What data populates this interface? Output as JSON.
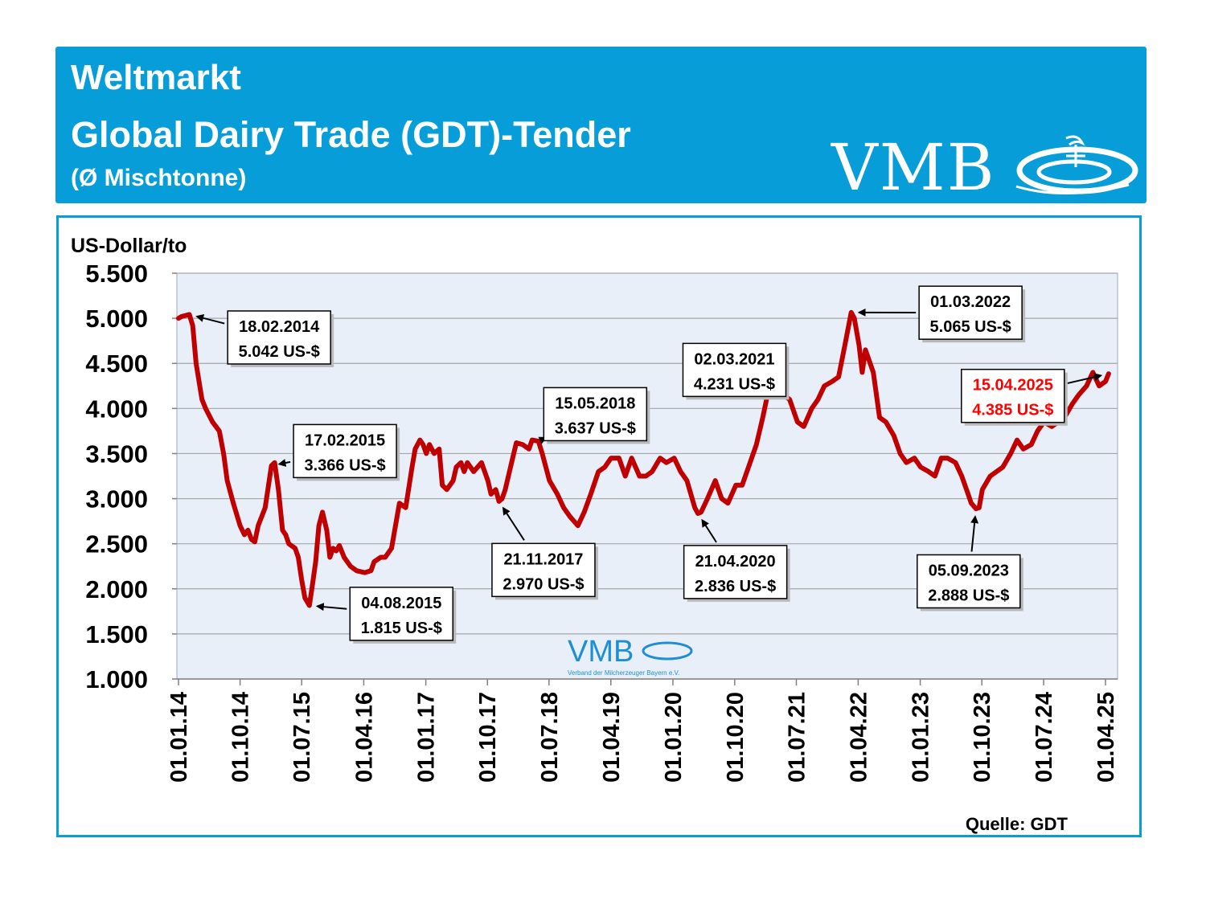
{
  "header": {
    "line1": "Weltmarkt",
    "line2": "Global Dairy Trade (GDT)-Tender",
    "line3": "(Ø Mischtonne)",
    "logo_text": "VMB",
    "bg_color": "#079dd9"
  },
  "watermark": {
    "logo_text": "VMB",
    "sub_text": "Verband der Milcherzeuger Bayern e.V."
  },
  "source": "Quelle: GDT",
  "chart_data": {
    "type": "line",
    "title": "",
    "ylabel": "US-Dollar/to",
    "xlabel": "",
    "ylim": [
      1000,
      5500
    ],
    "yticks": [
      1000,
      1500,
      2000,
      2500,
      3000,
      3500,
      4000,
      4500,
      5000,
      5500
    ],
    "ytick_labels": [
      "1.000",
      "1.500",
      "2.000",
      "2.500",
      "3.000",
      "3.500",
      "4.000",
      "4.500",
      "5.000",
      "5.500"
    ],
    "xlim": [
      "2014-01-01",
      "2025-04-01"
    ],
    "xticks": [
      "2014-01-01",
      "2014-10-01",
      "2015-07-01",
      "2016-04-01",
      "2017-01-01",
      "2017-10-01",
      "2018-07-01",
      "2019-04-01",
      "2020-01-01",
      "2020-10-01",
      "2021-07-01",
      "2022-04-01",
      "2023-01-01",
      "2023-10-01",
      "2024-07-01",
      "2025-04-01"
    ],
    "xtick_labels": [
      "01.01.14",
      "01.10.14",
      "01.07.15",
      "01.04.16",
      "01.01.17",
      "01.10.17",
      "01.07.18",
      "01.04.19",
      "01.01.20",
      "01.10.20",
      "01.07.21",
      "01.04.22",
      "01.01.23",
      "01.10.23",
      "01.07.24",
      "01.04.25"
    ],
    "grid": true,
    "line_color": "#c00000",
    "plot_bg": "#e9eff9",
    "series": [
      {
        "points": [
          [
            "2014-01-01",
            5000
          ],
          [
            "2014-01-15",
            5020
          ],
          [
            "2014-02-18",
            5042
          ],
          [
            "2014-03-05",
            4920
          ],
          [
            "2014-03-20",
            4500
          ],
          [
            "2014-04-15",
            4100
          ],
          [
            "2014-05-01",
            4000
          ],
          [
            "2014-06-01",
            3850
          ],
          [
            "2014-07-01",
            3750
          ],
          [
            "2014-07-20",
            3500
          ],
          [
            "2014-08-05",
            3200
          ],
          [
            "2014-09-01",
            2950
          ],
          [
            "2014-10-01",
            2700
          ],
          [
            "2014-10-20",
            2600
          ],
          [
            "2014-11-05",
            2650
          ],
          [
            "2014-11-20",
            2550
          ],
          [
            "2014-12-05",
            2520
          ],
          [
            "2014-12-20",
            2700
          ],
          [
            "2015-01-20",
            2900
          ],
          [
            "2015-02-17",
            3366
          ],
          [
            "2015-03-03",
            3400
          ],
          [
            "2015-03-20",
            3100
          ],
          [
            "2015-04-07",
            2650
          ],
          [
            "2015-04-21",
            2600
          ],
          [
            "2015-05-05",
            2500
          ],
          [
            "2015-06-02",
            2450
          ],
          [
            "2015-06-16",
            2350
          ],
          [
            "2015-07-01",
            2100
          ],
          [
            "2015-07-15",
            1900
          ],
          [
            "2015-08-04",
            1815
          ],
          [
            "2015-08-18",
            2050
          ],
          [
            "2015-09-01",
            2300
          ],
          [
            "2015-09-15",
            2700
          ],
          [
            "2015-10-01",
            2850
          ],
          [
            "2015-10-20",
            2650
          ],
          [
            "2015-11-03",
            2350
          ],
          [
            "2015-11-17",
            2450
          ],
          [
            "2015-12-01",
            2420
          ],
          [
            "2015-12-15",
            2480
          ],
          [
            "2016-01-05",
            2350
          ],
          [
            "2016-02-02",
            2250
          ],
          [
            "2016-03-01",
            2200
          ],
          [
            "2016-04-05",
            2180
          ],
          [
            "2016-05-03",
            2200
          ],
          [
            "2016-05-17",
            2300
          ],
          [
            "2016-06-15",
            2350
          ],
          [
            "2016-07-05",
            2350
          ],
          [
            "2016-08-02",
            2450
          ],
          [
            "2016-09-06",
            2950
          ],
          [
            "2016-10-04",
            2900
          ],
          [
            "2016-11-01",
            3350
          ],
          [
            "2016-11-15",
            3550
          ],
          [
            "2016-12-06",
            3650
          ],
          [
            "2016-12-20",
            3600
          ],
          [
            "2017-01-03",
            3500
          ],
          [
            "2017-01-17",
            3600
          ],
          [
            "2017-02-07",
            3500
          ],
          [
            "2017-03-01",
            3550
          ],
          [
            "2017-03-15",
            3150
          ],
          [
            "2017-04-04",
            3100
          ],
          [
            "2017-05-02",
            3200
          ],
          [
            "2017-05-16",
            3350
          ],
          [
            "2017-06-06",
            3400
          ],
          [
            "2017-06-20",
            3300
          ],
          [
            "2017-07-04",
            3400
          ],
          [
            "2017-08-01",
            3300
          ],
          [
            "2017-09-05",
            3400
          ],
          [
            "2017-10-03",
            3200
          ],
          [
            "2017-10-17",
            3050
          ],
          [
            "2017-11-07",
            3100
          ],
          [
            "2017-11-21",
            2970
          ],
          [
            "2017-12-05",
            3000
          ],
          [
            "2017-12-19",
            3100
          ],
          [
            "2018-01-16",
            3400
          ],
          [
            "2018-02-06",
            3620
          ],
          [
            "2018-03-06",
            3600
          ],
          [
            "2018-04-03",
            3550
          ],
          [
            "2018-04-17",
            3650
          ],
          [
            "2018-05-15",
            3637
          ],
          [
            "2018-06-01",
            3500
          ],
          [
            "2018-07-03",
            3200
          ],
          [
            "2018-08-07",
            3050
          ],
          [
            "2018-09-04",
            2900
          ],
          [
            "2018-10-02",
            2800
          ],
          [
            "2018-11-06",
            2700
          ],
          [
            "2018-12-04",
            2850
          ],
          [
            "2019-01-02",
            3050
          ],
          [
            "2019-02-05",
            3300
          ],
          [
            "2019-03-05",
            3350
          ],
          [
            "2019-04-02",
            3450
          ],
          [
            "2019-05-07",
            3450
          ],
          [
            "2019-06-04",
            3250
          ],
          [
            "2019-07-02",
            3450
          ],
          [
            "2019-08-06",
            3250
          ],
          [
            "2019-09-03",
            3250
          ],
          [
            "2019-10-01",
            3300
          ],
          [
            "2019-11-05",
            3450
          ],
          [
            "2019-12-03",
            3400
          ],
          [
            "2020-01-07",
            3450
          ],
          [
            "2020-02-04",
            3300
          ],
          [
            "2020-03-03",
            3200
          ],
          [
            "2020-04-07",
            2900
          ],
          [
            "2020-04-21",
            2836
          ],
          [
            "2020-05-05",
            2850
          ],
          [
            "2020-06-02",
            3000
          ],
          [
            "2020-07-07",
            3200
          ],
          [
            "2020-08-04",
            3000
          ],
          [
            "2020-09-01",
            2950
          ],
          [
            "2020-10-06",
            3150
          ],
          [
            "2020-11-03",
            3150
          ],
          [
            "2020-12-01",
            3350
          ],
          [
            "2021-01-05",
            3600
          ],
          [
            "2021-02-02",
            3900
          ],
          [
            "2021-03-02",
            4231
          ],
          [
            "2021-04-06",
            4150
          ],
          [
            "2021-05-04",
            4150
          ],
          [
            "2021-06-01",
            4100
          ],
          [
            "2021-07-06",
            3850
          ],
          [
            "2021-08-03",
            3800
          ],
          [
            "2021-09-07",
            4000
          ],
          [
            "2021-10-05",
            4100
          ],
          [
            "2021-11-02",
            4250
          ],
          [
            "2021-12-07",
            4300
          ],
          [
            "2022-01-04",
            4350
          ],
          [
            "2022-02-01",
            4700
          ],
          [
            "2022-03-01",
            5065
          ],
          [
            "2022-03-15",
            5000
          ],
          [
            "2022-04-05",
            4700
          ],
          [
            "2022-04-19",
            4400
          ],
          [
            "2022-05-03",
            4650
          ],
          [
            "2022-06-07",
            4400
          ],
          [
            "2022-07-05",
            3900
          ],
          [
            "2022-08-02",
            3850
          ],
          [
            "2022-09-06",
            3700
          ],
          [
            "2022-10-04",
            3500
          ],
          [
            "2022-11-01",
            3400
          ],
          [
            "2022-12-06",
            3450
          ],
          [
            "2023-01-03",
            3350
          ],
          [
            "2023-02-07",
            3300
          ],
          [
            "2023-03-07",
            3250
          ],
          [
            "2023-04-04",
            3450
          ],
          [
            "2023-05-02",
            3450
          ],
          [
            "2023-06-06",
            3400
          ],
          [
            "2023-07-04",
            3250
          ],
          [
            "2023-08-01",
            3050
          ],
          [
            "2023-08-15",
            2950
          ],
          [
            "2023-09-05",
            2888
          ],
          [
            "2023-09-19",
            2900
          ],
          [
            "2023-10-03",
            3100
          ],
          [
            "2023-11-07",
            3250
          ],
          [
            "2023-12-05",
            3300
          ],
          [
            "2024-01-02",
            3350
          ],
          [
            "2024-02-06",
            3500
          ],
          [
            "2024-03-05",
            3650
          ],
          [
            "2024-04-02",
            3550
          ],
          [
            "2024-05-07",
            3600
          ],
          [
            "2024-06-04",
            3750
          ],
          [
            "2024-07-02",
            3850
          ],
          [
            "2024-08-06",
            3800
          ],
          [
            "2024-09-03",
            3850
          ],
          [
            "2024-10-01",
            3900
          ],
          [
            "2024-11-05",
            4050
          ],
          [
            "2024-12-03",
            4150
          ],
          [
            "2025-01-07",
            4250
          ],
          [
            "2025-02-04",
            4400
          ],
          [
            "2025-03-04",
            4250
          ],
          [
            "2025-04-01",
            4300
          ],
          [
            "2025-04-15",
            4385
          ]
        ]
      }
    ],
    "annotations": [
      {
        "date_label": "18.02.2014",
        "value_label": "5.042 US-$",
        "point": [
          "2014-02-18",
          5042
        ],
        "box_left": 0.054,
        "box_top": 0.907,
        "highlight": false
      },
      {
        "date_label": "17.02.2015",
        "value_label": "3.366 US-$",
        "point": [
          "2015-02-17",
          3366
        ],
        "box_left": 0.124,
        "box_top": 0.627,
        "highlight": false
      },
      {
        "date_label": "04.08.2015",
        "value_label": "1.815 US-$",
        "point": [
          "2015-08-04",
          1815
        ],
        "box_left": 0.184,
        "box_top": 0.226,
        "highlight": false
      },
      {
        "date_label": "21.11.2017",
        "value_label": "2.970 US-$",
        "point": [
          "2017-11-21",
          2970
        ],
        "box_left": 0.335,
        "box_top": 0.334,
        "highlight": false
      },
      {
        "date_label": "15.05.2018",
        "value_label": "3.637 US-$",
        "point": [
          "2018-05-15",
          3637
        ],
        "box_left": 0.39,
        "box_top": 0.718,
        "highlight": false
      },
      {
        "date_label": "21.04.2020",
        "value_label": "2.836 US-$",
        "point": [
          "2020-04-21",
          2836
        ],
        "box_left": 0.539,
        "box_top": 0.329,
        "highlight": false
      },
      {
        "date_label": "02.03.2021",
        "value_label": "4.231 US-$",
        "point": [
          "2021-03-02",
          4231
        ],
        "box_left": 0.538,
        "box_top": 0.827,
        "highlight": false
      },
      {
        "date_label": "01.03.2022",
        "value_label": "5.065 US-$",
        "point": [
          "2022-03-01",
          5065
        ],
        "box_left": 0.789,
        "box_top": 0.968,
        "highlight": false
      },
      {
        "date_label": "05.09.2023",
        "value_label": "2.888 US-$",
        "point": [
          "2023-09-05",
          2888
        ],
        "box_left": 0.787,
        "box_top": 0.306,
        "highlight": false
      },
      {
        "date_label": "15.04.2025",
        "value_label": "4.385 US-$",
        "point": [
          "2025-04-15",
          4385
        ],
        "box_left": 0.834,
        "box_top": 0.763,
        "highlight": true
      }
    ]
  }
}
